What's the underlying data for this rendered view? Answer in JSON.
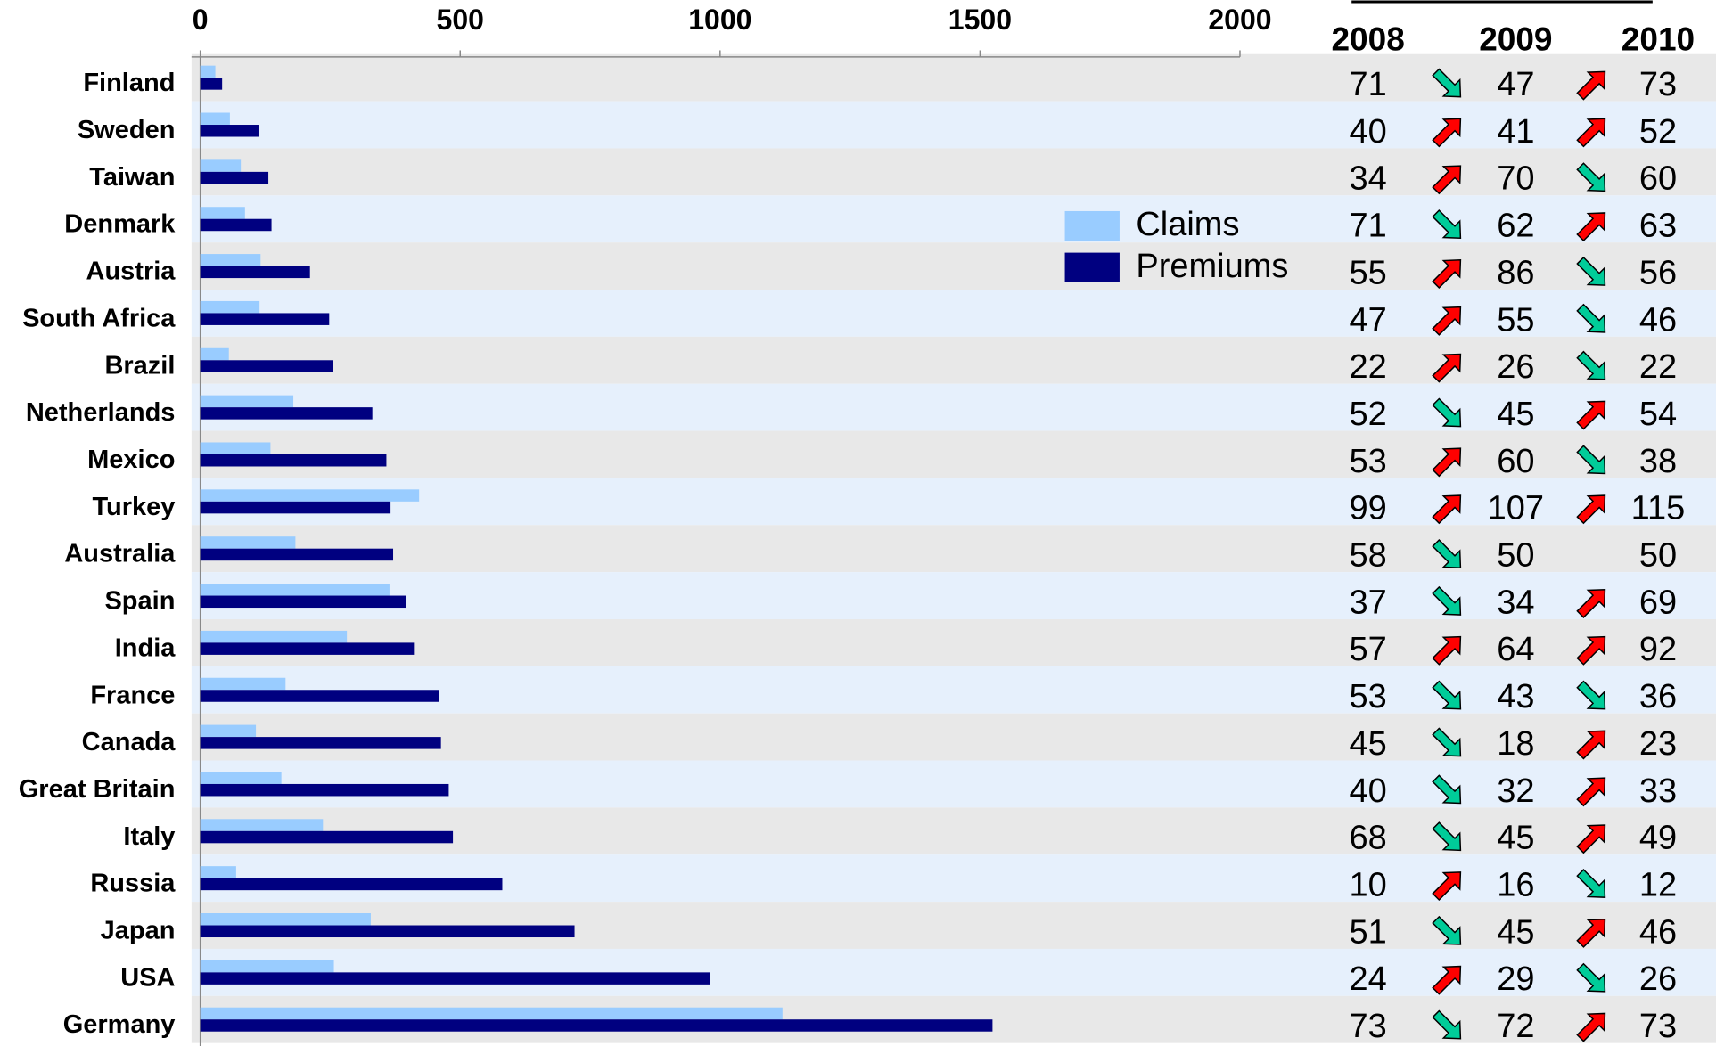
{
  "chart_data": {
    "type": "bar",
    "orientation": "horizontal",
    "categories": [
      "Finland",
      "Sweden",
      "Taiwan",
      "Denmark",
      "Austria",
      "South Africa",
      "Brazil",
      "Netherlands",
      "Mexico",
      "Turkey",
      "Australia",
      "Spain",
      "India",
      "France",
      "Canada",
      "Great Britain",
      "Italy",
      "Russia",
      "Japan",
      "USA",
      "Germany"
    ],
    "series": [
      {
        "name": "Claims",
        "color": "#99ccff",
        "values": [
          29,
          57,
          78,
          86,
          116,
          114,
          55,
          179,
          135,
          421,
          183,
          364,
          282,
          164,
          107,
          156,
          236,
          69,
          328,
          257,
          1120
        ]
      },
      {
        "name": "Premiums",
        "color": "#000080",
        "values": [
          42,
          112,
          131,
          137,
          211,
          248,
          255,
          331,
          358,
          366,
          371,
          396,
          411,
          459,
          463,
          478,
          486,
          581,
          720,
          981,
          1524
        ]
      }
    ],
    "xlim": [
      0,
      2000
    ],
    "xticks": [
      0,
      500,
      1000,
      1500,
      2000
    ]
  },
  "table": {
    "columns": [
      "2008",
      "2009",
      "2010"
    ],
    "rows": [
      [
        71,
        47,
        73
      ],
      [
        40,
        41,
        52
      ],
      [
        34,
        70,
        60
      ],
      [
        71,
        62,
        63
      ],
      [
        55,
        86,
        56
      ],
      [
        47,
        55,
        46
      ],
      [
        22,
        26,
        22
      ],
      [
        52,
        45,
        54
      ],
      [
        53,
        60,
        38
      ],
      [
        99,
        107,
        115
      ],
      [
        58,
        50,
        50
      ],
      [
        37,
        34,
        69
      ],
      [
        57,
        64,
        92
      ],
      [
        53,
        43,
        36
      ],
      [
        45,
        18,
        23
      ],
      [
        40,
        32,
        33
      ],
      [
        68,
        45,
        49
      ],
      [
        10,
        16,
        12
      ],
      [
        51,
        45,
        46
      ],
      [
        24,
        29,
        26
      ],
      [
        73,
        72,
        73
      ]
    ]
  }
}
